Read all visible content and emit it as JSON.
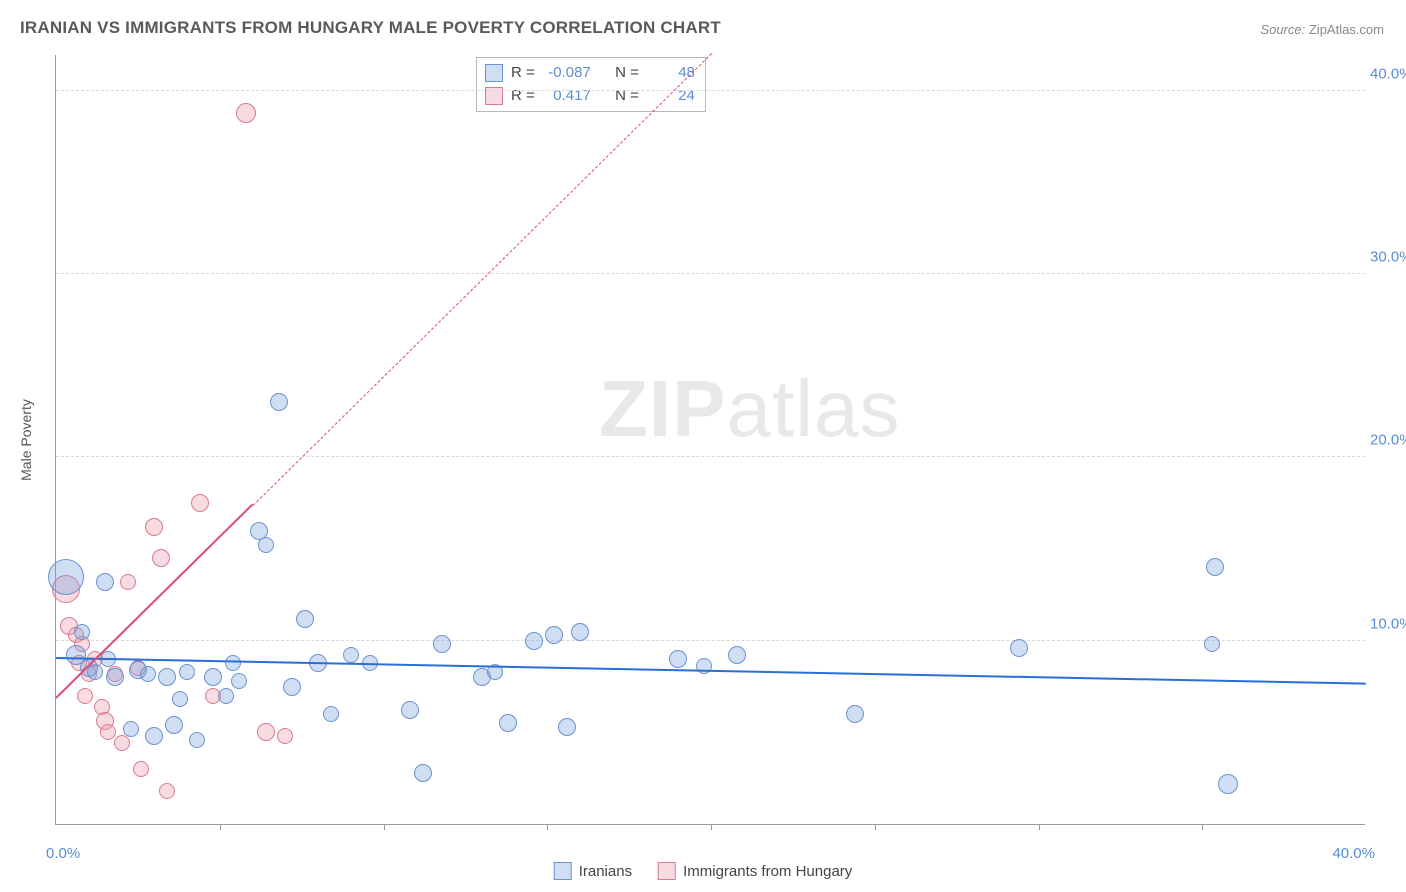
{
  "title": "IRANIAN VS IMMIGRANTS FROM HUNGARY MALE POVERTY CORRELATION CHART",
  "source_label": "Source:",
  "source_value": "ZipAtlas.com",
  "watermark_a": "ZIP",
  "watermark_b": "atlas",
  "ylabel": "Male Poverty",
  "chart": {
    "type": "scatter",
    "xlim": [
      0,
      40
    ],
    "ylim": [
      0,
      42
    ],
    "ytick_values": [
      10,
      20,
      30,
      40
    ],
    "ytick_labels": [
      "10.0%",
      "20.0%",
      "30.0%",
      "40.0%"
    ],
    "xtick_values": [
      5,
      10,
      15,
      20,
      25,
      30,
      35
    ],
    "xlabel_zero": "0.0%",
    "xlabel_max": "40.0%",
    "grid_color": "#d8d8d8",
    "axis_color": "#9a9a9a",
    "background_color": "#ffffff"
  },
  "series": {
    "iranians": {
      "label": "Iranians",
      "fill": "rgba(120,160,220,0.35)",
      "stroke": "#6a93cf",
      "trend_color": "#2a6fd6",
      "trend_width": 2.5,
      "trend_dash": "solid",
      "trend": {
        "x1": 0,
        "y1": 9.0,
        "x2": 40,
        "y2": 7.6
      },
      "R": "-0.087",
      "N": "48",
      "points": [
        {
          "x": 0.3,
          "y": 13.5,
          "r": 18
        },
        {
          "x": 0.8,
          "y": 10.5,
          "r": 8
        },
        {
          "x": 0.6,
          "y": 9.2,
          "r": 10
        },
        {
          "x": 1.0,
          "y": 8.5,
          "r": 9
        },
        {
          "x": 1.5,
          "y": 13.2,
          "r": 9
        },
        {
          "x": 1.2,
          "y": 8.3,
          "r": 8
        },
        {
          "x": 1.6,
          "y": 9.0,
          "r": 8
        },
        {
          "x": 1.8,
          "y": 8.0,
          "r": 9
        },
        {
          "x": 2.5,
          "y": 8.4,
          "r": 9
        },
        {
          "x": 2.8,
          "y": 8.2,
          "r": 8
        },
        {
          "x": 2.3,
          "y": 5.2,
          "r": 8
        },
        {
          "x": 3.0,
          "y": 4.8,
          "r": 9
        },
        {
          "x": 3.4,
          "y": 8.0,
          "r": 9
        },
        {
          "x": 3.6,
          "y": 5.4,
          "r": 9
        },
        {
          "x": 4.0,
          "y": 8.3,
          "r": 8
        },
        {
          "x": 4.3,
          "y": 4.6,
          "r": 8
        },
        {
          "x": 3.8,
          "y": 6.8,
          "r": 8
        },
        {
          "x": 4.8,
          "y": 8.0,
          "r": 9
        },
        {
          "x": 5.2,
          "y": 7.0,
          "r": 8
        },
        {
          "x": 5.6,
          "y": 7.8,
          "r": 8
        },
        {
          "x": 6.2,
          "y": 16.0,
          "r": 9
        },
        {
          "x": 6.4,
          "y": 15.2,
          "r": 8
        },
        {
          "x": 5.4,
          "y": 8.8,
          "r": 8
        },
        {
          "x": 6.8,
          "y": 23.0,
          "r": 9
        },
        {
          "x": 7.2,
          "y": 7.5,
          "r": 9
        },
        {
          "x": 7.6,
          "y": 11.2,
          "r": 9
        },
        {
          "x": 8.0,
          "y": 8.8,
          "r": 9
        },
        {
          "x": 8.4,
          "y": 6.0,
          "r": 8
        },
        {
          "x": 9.0,
          "y": 9.2,
          "r": 8
        },
        {
          "x": 9.6,
          "y": 8.8,
          "r": 8
        },
        {
          "x": 10.8,
          "y": 6.2,
          "r": 9
        },
        {
          "x": 11.2,
          "y": 2.8,
          "r": 9
        },
        {
          "x": 11.8,
          "y": 9.8,
          "r": 9
        },
        {
          "x": 13.0,
          "y": 8.0,
          "r": 9
        },
        {
          "x": 13.4,
          "y": 8.3,
          "r": 8
        },
        {
          "x": 13.8,
          "y": 5.5,
          "r": 9
        },
        {
          "x": 14.6,
          "y": 10.0,
          "r": 9
        },
        {
          "x": 15.2,
          "y": 10.3,
          "r": 9
        },
        {
          "x": 15.6,
          "y": 5.3,
          "r": 9
        },
        {
          "x": 16.0,
          "y": 10.5,
          "r": 9
        },
        {
          "x": 19.0,
          "y": 9.0,
          "r": 9
        },
        {
          "x": 19.8,
          "y": 8.6,
          "r": 8
        },
        {
          "x": 20.8,
          "y": 9.2,
          "r": 9
        },
        {
          "x": 24.4,
          "y": 6.0,
          "r": 9
        },
        {
          "x": 29.4,
          "y": 9.6,
          "r": 9
        },
        {
          "x": 35.4,
          "y": 14.0,
          "r": 9
        },
        {
          "x": 35.8,
          "y": 2.2,
          "r": 10
        },
        {
          "x": 35.3,
          "y": 9.8,
          "r": 8
        }
      ]
    },
    "hungary": {
      "label": "Immigrants from Hungary",
      "fill": "rgba(235,150,170,0.35)",
      "stroke": "#d97a95",
      "trend_color": "#e04a7a",
      "trend_width": 2,
      "trend_dash": "6,5",
      "trend": {
        "x1": 0,
        "y1": 6.8,
        "x2": 20,
        "y2": 42
      },
      "solid_max_x": 6.0,
      "R": "0.417",
      "N": "24",
      "points": [
        {
          "x": 0.3,
          "y": 12.8,
          "r": 14
        },
        {
          "x": 0.4,
          "y": 10.8,
          "r": 9
        },
        {
          "x": 0.6,
          "y": 10.3,
          "r": 8
        },
        {
          "x": 0.8,
          "y": 9.8,
          "r": 8
        },
        {
          "x": 0.7,
          "y": 8.8,
          "r": 8
        },
        {
          "x": 1.0,
          "y": 8.2,
          "r": 8
        },
        {
          "x": 0.9,
          "y": 7.0,
          "r": 8
        },
        {
          "x": 1.2,
          "y": 9.0,
          "r": 8
        },
        {
          "x": 1.4,
          "y": 6.4,
          "r": 8
        },
        {
          "x": 1.5,
          "y": 5.6,
          "r": 9
        },
        {
          "x": 1.6,
          "y": 5.0,
          "r": 8
        },
        {
          "x": 1.8,
          "y": 8.2,
          "r": 8
        },
        {
          "x": 2.0,
          "y": 4.4,
          "r": 8
        },
        {
          "x": 2.2,
          "y": 13.2,
          "r": 8
        },
        {
          "x": 2.5,
          "y": 8.5,
          "r": 8
        },
        {
          "x": 2.6,
          "y": 3.0,
          "r": 8
        },
        {
          "x": 3.0,
          "y": 16.2,
          "r": 9
        },
        {
          "x": 3.2,
          "y": 14.5,
          "r": 9
        },
        {
          "x": 3.4,
          "y": 1.8,
          "r": 8
        },
        {
          "x": 4.4,
          "y": 17.5,
          "r": 9
        },
        {
          "x": 4.8,
          "y": 7.0,
          "r": 8
        },
        {
          "x": 5.8,
          "y": 38.8,
          "r": 10
        },
        {
          "x": 6.4,
          "y": 5.0,
          "r": 9
        },
        {
          "x": 7.0,
          "y": 4.8,
          "r": 8
        }
      ]
    }
  },
  "legend_labels": {
    "R": "R =",
    "N": "N ="
  }
}
